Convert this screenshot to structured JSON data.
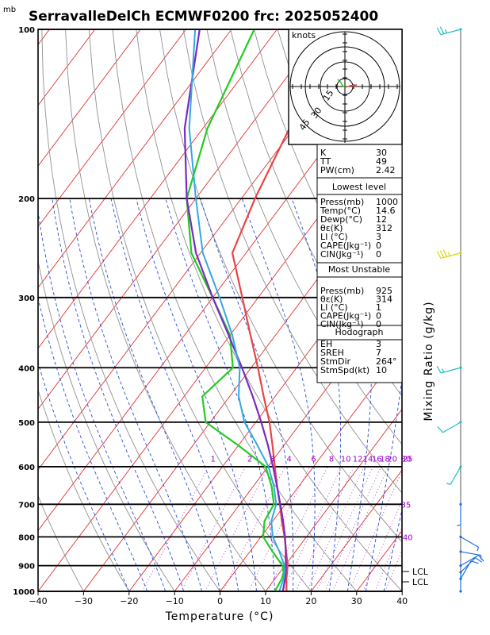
{
  "title": "SerravalleDelCh ECMWF0200 frc: 2025052400",
  "pressure_unit": "mb",
  "colors": {
    "isotherm": "#e03030",
    "dry_adiabat": "#909090",
    "moist_adiabat": "#2a4fd8",
    "mixing_ratio": "#aa33cc",
    "temperature": "#e84444",
    "dewpoint": "#22cc22",
    "parcel": "#7a2bbf",
    "wetbulb": "#33a8e0",
    "wind": "#1fbfc0",
    "wind_upper": "#d8d800",
    "wind_low": "#1f6fe0"
  },
  "chart_data": {
    "type": "line",
    "subtype": "skew-t log-p",
    "xlabel": "Temperature (°C)",
    "ylabel": "Mixing Ratio (g/kg)",
    "xlim": [
      -40,
      40
    ],
    "ylim": [
      1000,
      100
    ],
    "y_scale": "log",
    "x_ticks": [
      "−40",
      "−30",
      "−20",
      "−10",
      "0",
      "10",
      "20",
      "30",
      "40"
    ],
    "p_ticks": [
      1000,
      900,
      800,
      700,
      600,
      500,
      400,
      300,
      200,
      100
    ],
    "series": [
      {
        "key": "temperature",
        "p": [
          1000,
          950,
          925,
          900,
          850,
          800,
          750,
          700,
          650,
          600,
          550,
          500,
          450,
          400,
          350,
          300,
          250,
          200,
          150,
          100
        ],
        "t": [
          14.6,
          12.5,
          11.6,
          10.6,
          8.0,
          5.2,
          2.0,
          -1.2,
          -4.8,
          -8.5,
          -12.5,
          -17.0,
          -22.5,
          -28.5,
          -35.5,
          -43.5,
          -53.0,
          -57.0,
          -61.0,
          -66.0
        ]
      },
      {
        "key": "dewpoint",
        "p": [
          1000,
          950,
          925,
          900,
          850,
          800,
          750,
          700,
          650,
          600,
          550,
          500,
          450,
          400,
          350,
          300,
          250,
          200,
          150,
          100
        ],
        "t": [
          12.0,
          11.5,
          10.8,
          9.5,
          5.0,
          0.5,
          -1.8,
          -2.5,
          -6.0,
          -10.5,
          -20.0,
          -31.0,
          -36.0,
          -34.0,
          -40.0,
          -50.0,
          -62.0,
          -72.0,
          -79.0,
          -85.0
        ]
      },
      {
        "key": "parcel",
        "p": [
          1000,
          950,
          925,
          900,
          850,
          800,
          750,
          700,
          650,
          600,
          550,
          500,
          450,
          400,
          350,
          300,
          250,
          200,
          150,
          100
        ],
        "t": [
          13.8,
          12.2,
          11.3,
          10.2,
          7.9,
          5.3,
          2.3,
          -1.1,
          -4.8,
          -8.9,
          -13.5,
          -18.8,
          -24.9,
          -32.0,
          -40.3,
          -50.0,
          -61.0,
          -72.0,
          -84.0,
          -97.0
        ]
      },
      {
        "key": "wetbulb",
        "p": [
          1000,
          950,
          925,
          900,
          850,
          800,
          750,
          700,
          650,
          600,
          550,
          500,
          450,
          400,
          350,
          300,
          250,
          200,
          150,
          100
        ],
        "t": [
          13.0,
          11.9,
          11.1,
          9.9,
          6.5,
          2.6,
          -0.3,
          -2.0,
          -5.5,
          -9.9,
          -15.8,
          -22.5,
          -28.0,
          -32.5,
          -39.5,
          -48.5,
          -59.5,
          -70.0,
          -83.0,
          -98.0
        ]
      }
    ],
    "mixing_ratio_labels": [
      "1",
      "2",
      "3",
      "4",
      "6",
      "8",
      "10",
      "12",
      "14",
      "16",
      "18",
      "20",
      "25",
      "30",
      "35",
      "40"
    ],
    "lcl_labels": [
      "LCL",
      "LCL"
    ],
    "wind": {
      "p": [
        100,
        250,
        400,
        500,
        600,
        700,
        800,
        850,
        900,
        925,
        950,
        1000
      ],
      "dir": [
        255,
        255,
        255,
        240,
        210,
        180,
        120,
        100,
        60,
        45,
        30,
        0
      ],
      "spd": [
        25,
        35,
        15,
        10,
        5,
        5,
        5,
        8,
        10,
        12,
        10,
        2
      ]
    }
  },
  "hodograph": {
    "unit": "knots",
    "ring_labels": [
      "15",
      "30",
      "45"
    ]
  },
  "indices": {
    "top": [
      {
        "label": "K",
        "value": "30"
      },
      {
        "label": "TT",
        "value": "49"
      },
      {
        "label": "PW(cm)",
        "value": "2.42"
      }
    ],
    "lowest": {
      "header": "Lowest level",
      "rows": [
        {
          "label": "Press(mb)",
          "value": "1000"
        },
        {
          "label": "Temp(°C)",
          "value": "14.6"
        },
        {
          "label": "Dewp(°C)",
          "value": "12"
        },
        {
          "label": "θε(K)",
          "value": "312"
        },
        {
          "label": "LI (°C)",
          "value": "3"
        },
        {
          "label": "CAPE(Jkg⁻¹)",
          "value": "0"
        },
        {
          "label": "CIN(Jkg⁻¹)",
          "value": "0"
        }
      ]
    },
    "unstable": {
      "header": "Most Unstable",
      "rows": [
        {
          "label": "Press(mb)",
          "value": "925"
        },
        {
          "label": "θε(K)",
          "value": "314"
        },
        {
          "label": "LI (°C)",
          "value": "1"
        },
        {
          "label": "CAPE(Jkg⁻¹)",
          "value": "0"
        },
        {
          "label": "CIN(Jkg⁻¹)",
          "value": "0"
        }
      ]
    },
    "hodo": {
      "header": "Hodograph",
      "rows": [
        {
          "label": "EH",
          "value": "3"
        },
        {
          "label": "SREH",
          "value": "7"
        },
        {
          "label": "StmDir",
          "value": "264°"
        },
        {
          "label": "StmSpd(kt)",
          "value": "10"
        }
      ]
    }
  }
}
